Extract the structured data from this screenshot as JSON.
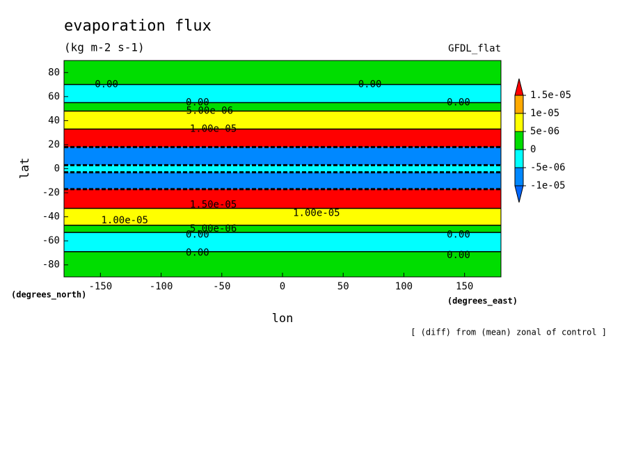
{
  "chart_data": {
    "type": "zonal-contour",
    "title": "evaporation flux",
    "subtitle": "(kg m-2 s-1)",
    "model_label": "GFDL_flat",
    "y_label": "lat",
    "x_label": "lon",
    "y_units": "(degrees_north)",
    "x_units": "(degrees_east)",
    "footnote": "[ (diff) from (mean) zonal of control ]",
    "xlim": [
      -180,
      180
    ],
    "ylim": [
      -90,
      90
    ],
    "xticks": [
      -150,
      -100,
      -50,
      0,
      50,
      100,
      150
    ],
    "yticks": [
      -80,
      -60,
      -40,
      -20,
      0,
      20,
      40,
      60,
      80
    ],
    "bands": [
      {
        "lat": [
          70,
          90
        ],
        "color": "#00dd00"
      },
      {
        "lat": [
          55,
          70
        ],
        "color": "#00ffff"
      },
      {
        "lat": [
          48,
          55
        ],
        "color": "#00dd00"
      },
      {
        "lat": [
          33,
          48
        ],
        "color": "#ffff00"
      },
      {
        "lat": [
          18,
          33
        ],
        "color": "#ff0000"
      },
      {
        "lat": [
          3,
          18
        ],
        "color": "#0088ff"
      },
      {
        "lat": [
          -3,
          3
        ],
        "color": "#00ffff"
      },
      {
        "lat": [
          -17,
          -3
        ],
        "color": "#0088ff"
      },
      {
        "lat": [
          -33,
          -17
        ],
        "color": "#ff0000"
      },
      {
        "lat": [
          -47,
          -33
        ],
        "color": "#ffff00"
      },
      {
        "lat": [
          -53,
          -47
        ],
        "color": "#00dd00"
      },
      {
        "lat": [
          -69,
          -53
        ],
        "color": "#00ffff"
      },
      {
        "lat": [
          -90,
          -69
        ],
        "color": "#00dd00"
      }
    ],
    "contour_labels": [
      {
        "text": "0.00",
        "lon": -145,
        "lat": 70
      },
      {
        "text": "0.00",
        "lon": 72,
        "lat": 70
      },
      {
        "text": "0.00",
        "lon": 145,
        "lat": 55
      },
      {
        "text": "0.00",
        "lon": -70,
        "lat": 55
      },
      {
        "text": "5.00e-06",
        "lon": -60,
        "lat": 48
      },
      {
        "text": "1.00e-05",
        "lon": -57,
        "lat": 33
      },
      {
        "text": "1.00e-05",
        "lon": -130,
        "lat": -43
      },
      {
        "text": "1.00e-05",
        "lon": 28,
        "lat": -37
      },
      {
        "text": "1.50e-05",
        "lon": -57,
        "lat": -30
      },
      {
        "text": "5.00e-06",
        "lon": -57,
        "lat": -50
      },
      {
        "text": "0.00",
        "lon": -70,
        "lat": -55
      },
      {
        "text": "0.00",
        "lon": 145,
        "lat": -55
      },
      {
        "text": "0.00",
        "lon": -70,
        "lat": -70
      },
      {
        "text": "0.00",
        "lon": 145,
        "lat": -72
      }
    ],
    "colorbar": {
      "colors": [
        "#0066ff",
        "#0088ff",
        "#00ffff",
        "#00dd00",
        "#ffff00",
        "#ffaa00",
        "#ff0000"
      ],
      "ticks": [
        {
          "value": -1e-05,
          "label": "-1e-05"
        },
        {
          "value": -5e-06,
          "label": "-5e-06"
        },
        0,
        {
          "value": 5e-06,
          "label": "5e-06"
        },
        {
          "value": 1e-05,
          "label": "1e-05"
        },
        {
          "value": 1.5e-05,
          "label": "1.5e-05"
        }
      ]
    }
  }
}
